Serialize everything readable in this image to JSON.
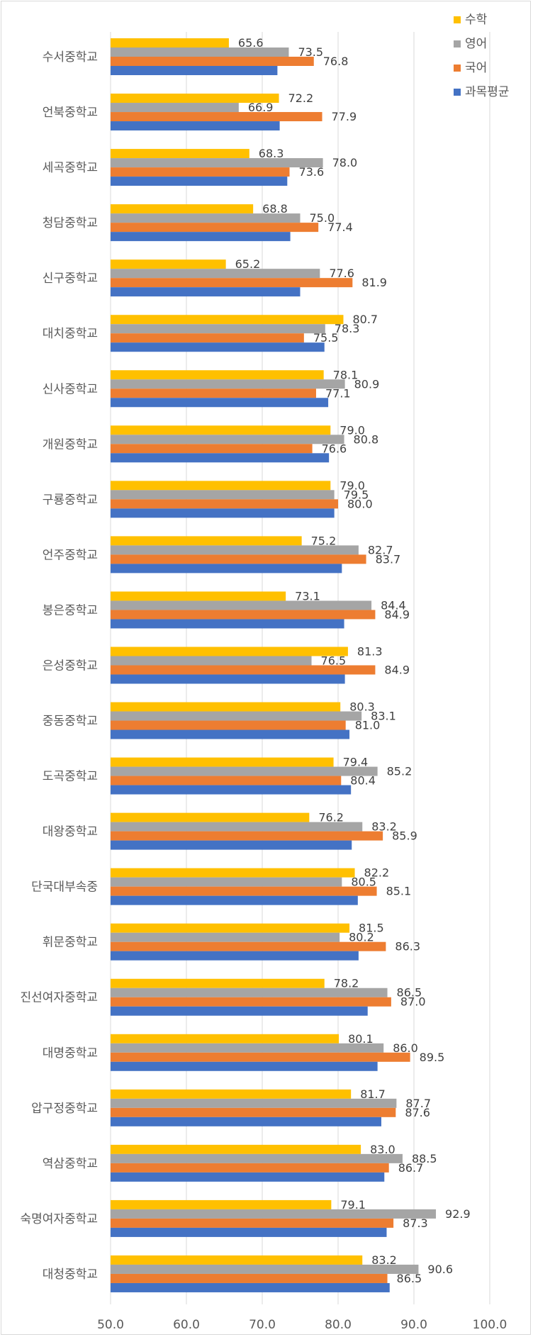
{
  "chart_data": {
    "type": "bar",
    "orientation": "horizontal",
    "categories": [
      "수서중학교",
      "언북중학교",
      "세곡중학교",
      "청담중학교",
      "신구중학교",
      "대치중학교",
      "신사중학교",
      "개원중학교",
      "구룡중학교",
      "언주중학교",
      "봉은중학교",
      "은성중학교",
      "중동중학교",
      "도곡중학교",
      "대왕중학교",
      "단국대부속중",
      "휘문중학교",
      "진선여자중학교",
      "대명중학교",
      "압구정중학교",
      "역삼중학교",
      "숙명여자중학교",
      "대청중학교"
    ],
    "series": [
      {
        "name": "수학",
        "color": "#FFC000",
        "values": [
          65.6,
          72.2,
          68.3,
          68.8,
          65.2,
          80.7,
          78.1,
          79.0,
          79.0,
          75.2,
          73.1,
          81.3,
          80.3,
          79.4,
          76.2,
          82.2,
          81.5,
          78.2,
          80.1,
          81.7,
          83.0,
          79.1,
          83.2
        ],
        "labels": [
          "65.6",
          "72.2",
          "68.3",
          "68.8",
          "65.2",
          "80.7",
          "78.1",
          "79.0",
          "79.0",
          "75.2",
          "73.1",
          "81.3",
          "80.3",
          "79.4",
          "76.2",
          "82.2",
          "81.5",
          "78.2",
          "80.1",
          "81.7",
          "83.0",
          "79.1",
          "83.2"
        ]
      },
      {
        "name": "영어",
        "color": "#A5A5A5",
        "values": [
          73.5,
          66.9,
          78.0,
          75.0,
          77.6,
          78.3,
          80.9,
          80.8,
          79.5,
          82.7,
          84.4,
          76.5,
          83.1,
          85.2,
          83.2,
          80.5,
          80.2,
          86.5,
          86.0,
          87.7,
          88.5,
          92.9,
          90.6
        ],
        "labels": [
          "73.5",
          "66.9",
          "78.0",
          "75.0",
          "77.6",
          "78.3",
          "80.9",
          "80.8",
          "79.5",
          "82.7",
          "84.4",
          "76.5",
          "83.1",
          "85.2",
          "83.2",
          "80.5",
          "80.2",
          "86.5",
          "86.0",
          "87.7",
          "88.5",
          "92.9",
          "90.6"
        ]
      },
      {
        "name": "국어",
        "color": "#ED7D31",
        "values": [
          76.8,
          77.9,
          73.6,
          77.4,
          81.9,
          75.5,
          77.1,
          76.6,
          80.0,
          83.7,
          84.9,
          84.9,
          81.0,
          80.4,
          85.9,
          85.1,
          86.3,
          87.0,
          89.5,
          87.6,
          86.7,
          87.3,
          86.5
        ],
        "labels": [
          "76.8",
          "77.9",
          "73.6",
          "77.4",
          "81.9",
          "75.5",
          "77.1",
          "76.6",
          "80.0",
          "83.7",
          "84.9",
          "84.9",
          "81.0",
          "80.4",
          "85.9",
          "85.1",
          "86.3",
          "87.0",
          "89.5",
          "87.6",
          "86.7",
          "87.3",
          "86.5"
        ]
      },
      {
        "name": "과목평균",
        "color": "#4472C4",
        "values": [
          72.0,
          72.3,
          73.3,
          73.7,
          75.0,
          78.2,
          78.7,
          78.8,
          79.5,
          80.5,
          80.8,
          80.9,
          81.5,
          81.7,
          81.8,
          82.6,
          82.7,
          83.9,
          85.2,
          85.7,
          86.1,
          86.4,
          86.8
        ]
      }
    ],
    "x_axis": {
      "min": 50,
      "max": 100,
      "ticks": [
        50,
        60,
        70,
        80,
        90,
        100
      ],
      "tick_labels": [
        "50.0",
        "60.0",
        "70.0",
        "80.0",
        "90.0",
        "100.0"
      ]
    },
    "grid": "vertical",
    "legend_position": "top-right"
  }
}
